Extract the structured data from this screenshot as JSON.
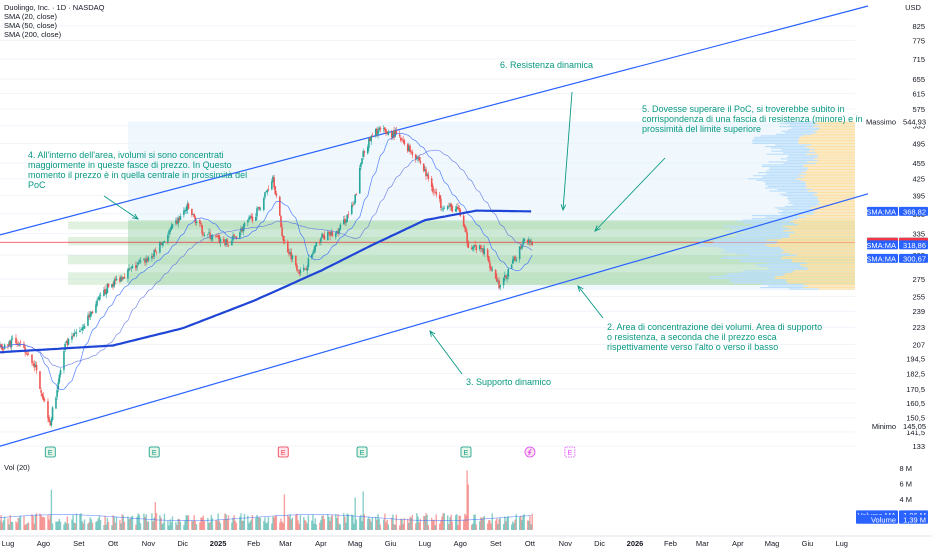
{
  "header": {
    "symbol_line": "Duolingo, Inc. · 1D · NASDAQ",
    "indicators": [
      "SMA (20, close)",
      "SMA (50, close)",
      "SMA (200, close)"
    ],
    "currency": "USD",
    "volume_label": "Vol (20)"
  },
  "colors": {
    "up": "#26a69a",
    "down": "#ef5350",
    "channel": "#2962ff",
    "sma20": "#2962ff",
    "sma50": "#5b6ee1",
    "sma200": "#1f45d6",
    "annotation": "#089981",
    "poc_line": "#f23645",
    "value_area": "#a5d6a7",
    "profile_up": "#ffe0a3",
    "profile_dn": "#bbdefb"
  },
  "annotations": [
    {
      "id": "ann-6",
      "text": "6. Resistenza dinamica"
    },
    {
      "id": "ann-5",
      "text": "5. Dovesse superare il PoC, si troverebbe subito in corrispondenza di una fascia di resistenza (minore) e in prossimità del limite superiore"
    },
    {
      "id": "ann-4",
      "text": "4. All'interno dell'area, ivolumi si sono concentrati maggiormente in queste fasce di prezzo. In Questo momento il prezzo è in quella centrale in prossimità del PoC"
    },
    {
      "id": "ann-2",
      "text": "2. Area di concentrazione dei volumi. Area di supporto o resistenza, a seconda che il prezzo esca rispettivamente verso l'alto o verso il basso"
    },
    {
      "id": "ann-3",
      "text": "3. Supporto dinamico"
    }
  ],
  "chart_data": {
    "type": "candlestick",
    "x_axis_labels": [
      "Lug",
      "Ago",
      "Set",
      "Ott",
      "Nov",
      "Dic",
      "2025",
      "Feb",
      "Mar",
      "Apr",
      "Mag",
      "Giu",
      "Lug",
      "Ago",
      "Set",
      "Ott",
      "Nov",
      "Dic",
      "2026",
      "Feb",
      "Mar",
      "Apr",
      "Mag",
      "Giu",
      "Lug"
    ],
    "y_axis_ticks": [
      825,
      775,
      715,
      655,
      615,
      575,
      535,
      495,
      455,
      425,
      395,
      365,
      335,
      305,
      275,
      255,
      239,
      223,
      207,
      194.5,
      182.5,
      170.5,
      160.5,
      150.5,
      141.5,
      133
    ],
    "y_scale": "log",
    "ylim": [
      128,
      900
    ],
    "price_labels": [
      {
        "name": "Massimo",
        "value": "544,93",
        "price": 544.93,
        "style": "max"
      },
      {
        "name": "SMA:MA",
        "value": "368,82",
        "price": 368.82,
        "style": "sma"
      },
      {
        "name": "DUOL",
        "value": "322,63",
        "price": 322.63,
        "style": "last"
      },
      {
        "name": "POC",
        "value": "322,50",
        "price": 322.5,
        "style": "poc"
      },
      {
        "name": "SMA:MA",
        "value": "318,86",
        "price": 318.86,
        "style": "sma"
      },
      {
        "name": "SMA:MA",
        "value": "300,67",
        "price": 300.67,
        "style": "sma"
      },
      {
        "name": "Minimo",
        "value": "145,05",
        "price": 145.05,
        "style": "min"
      }
    ],
    "last_price": 322.63,
    "poc_price": 322.5,
    "value_area": {
      "low": 268,
      "high": 355
    },
    "volume_nodes": [
      {
        "low": 268,
        "high": 283
      },
      {
        "low": 293,
        "high": 305
      },
      {
        "low": 318,
        "high": 330
      },
      {
        "low": 341,
        "high": 353
      }
    ],
    "profile_box": {
      "low": 262,
      "high": 545
    },
    "channel_upper": [
      {
        "date": "2024-06-24",
        "price": 333
      },
      {
        "date": "2026-07-24",
        "price": 900
      }
    ],
    "channel_lower": [
      {
        "date": "2024-06-24",
        "price": 133
      },
      {
        "date": "2026-07-24",
        "price": 398
      }
    ],
    "ohlc_keypoints": [
      {
        "date": "2024-06-24",
        "close": 205
      },
      {
        "date": "2024-07-08",
        "close": 210
      },
      {
        "date": "2024-07-24",
        "close": 190
      },
      {
        "date": "2024-08-07",
        "close": 147
      },
      {
        "date": "2024-08-20",
        "close": 205
      },
      {
        "date": "2024-09-05",
        "close": 225
      },
      {
        "date": "2024-09-26",
        "close": 265
      },
      {
        "date": "2024-10-15",
        "close": 285
      },
      {
        "date": "2024-11-05",
        "close": 305
      },
      {
        "date": "2024-11-25",
        "close": 350
      },
      {
        "date": "2024-12-05",
        "close": 375
      },
      {
        "date": "2024-12-20",
        "close": 335
      },
      {
        "date": "2025-01-10",
        "close": 320
      },
      {
        "date": "2025-02-05",
        "close": 370
      },
      {
        "date": "2025-02-18",
        "close": 430
      },
      {
        "date": "2025-02-27",
        "close": 325
      },
      {
        "date": "2025-03-15",
        "close": 280
      },
      {
        "date": "2025-04-01",
        "close": 330
      },
      {
        "date": "2025-04-15",
        "close": 335
      },
      {
        "date": "2025-04-30",
        "close": 380
      },
      {
        "date": "2025-05-08",
        "close": 480
      },
      {
        "date": "2025-05-20",
        "close": 525
      },
      {
        "date": "2025-06-05",
        "close": 515
      },
      {
        "date": "2025-06-25",
        "close": 465
      },
      {
        "date": "2025-07-15",
        "close": 380
      },
      {
        "date": "2025-07-31",
        "close": 370
      },
      {
        "date": "2025-08-08",
        "close": 320
      },
      {
        "date": "2025-08-22",
        "close": 310
      },
      {
        "date": "2025-09-05",
        "close": 265
      },
      {
        "date": "2025-09-18",
        "close": 300
      },
      {
        "date": "2025-09-26",
        "close": 330
      },
      {
        "date": "2025-10-03",
        "close": 322.63
      }
    ],
    "sma200_keypoints": [
      {
        "date": "2024-06-24",
        "close": 200
      },
      {
        "date": "2024-10-01",
        "close": 206
      },
      {
        "date": "2024-12-01",
        "close": 222
      },
      {
        "date": "2025-02-01",
        "close": 250
      },
      {
        "date": "2025-04-01",
        "close": 285
      },
      {
        "date": "2025-05-15",
        "close": 318
      },
      {
        "date": "2025-07-01",
        "close": 355
      },
      {
        "date": "2025-08-15",
        "close": 370
      },
      {
        "date": "2025-10-03",
        "close": 368.82
      }
    ],
    "earnings_markers": [
      {
        "date": "2024-08-07",
        "label": "E",
        "kind": "earnings"
      },
      {
        "date": "2024-11-06",
        "label": "E",
        "kind": "earnings"
      },
      {
        "date": "2025-02-27",
        "label": "E",
        "kind": "earnings-red"
      },
      {
        "date": "2025-05-07",
        "label": "E",
        "kind": "earnings"
      },
      {
        "date": "2025-08-06",
        "label": "E",
        "kind": "earnings"
      },
      {
        "date": "2025-10-01",
        "label": "",
        "kind": "event"
      },
      {
        "date": "2025-11-05",
        "label": "E",
        "kind": "upcoming"
      }
    ],
    "volume_ticks": [
      "8 M",
      "6 M",
      "4 M",
      "2 M"
    ],
    "volume_ylim": [
      0,
      8.8
    ],
    "volume_labels": [
      {
        "name": "Volume MA",
        "value": "1,96 M",
        "value_m": 1.96
      },
      {
        "name": "Volume",
        "value": "1,39 M",
        "value_m": 1.39
      }
    ],
    "volume_keypoints": [
      {
        "date": "2024-08-08",
        "volume_m": 5.2
      },
      {
        "date": "2024-11-07",
        "volume_m": 3.6
      },
      {
        "date": "2025-02-28",
        "volume_m": 4.6
      },
      {
        "date": "2025-05-01",
        "volume_m": 4.2
      },
      {
        "date": "2025-05-08",
        "volume_m": 5.0
      },
      {
        "date": "2025-08-07",
        "volume_m": 7.7
      },
      {
        "date": "2025-08-08",
        "volume_m": 5.9
      }
    ]
  }
}
